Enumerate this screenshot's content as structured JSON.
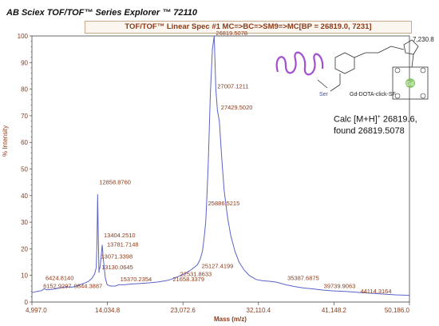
{
  "header": {
    "app_title": "AB Sciex TOF/TOF™ Series Explorer ™ 72110",
    "spectrum_title": "TOF/TOF™ Linear Spec #1 MC=>BC=>SM9=>MC[BP = 26819.0, 7231]"
  },
  "annotation": {
    "line1": "Calc [M+H]",
    "sup": "+",
    "line1_value": " 26819.6,",
    "line2": "found 26819.5078"
  },
  "compound": {
    "name": "Gd-DOTA-click-SF",
    "ser_label": "Ser",
    "gd_label": "Gd"
  },
  "colors": {
    "trace": "#5a63c8",
    "axis_text": "#8b3a1a",
    "coil": "#a24fd0",
    "gd": "#7ec05a"
  },
  "chart_data": {
    "type": "line",
    "xlabel": "Mass (m/z)",
    "ylabel": "% Intensity",
    "xlim": [
      4997.0,
      50186.0
    ],
    "ylim": [
      0,
      100
    ],
    "y_max_counts": "7,230.8",
    "x_ticks": [
      "4,997.0",
      "14,034.8",
      "23,072.6",
      "32,110.4",
      "41,148.2",
      "50,186.0"
    ],
    "x_tick_values": [
      4997.0,
      14034.8,
      23072.6,
      32110.4,
      41148.2,
      50186.0
    ],
    "y_ticks": [
      0,
      10,
      20,
      30,
      40,
      50,
      60,
      70,
      80,
      90,
      100
    ],
    "series": [
      {
        "x": [
          4997,
          5600,
          6200,
          6424.8,
          6800,
          7500,
          8200,
          9000,
          9844.4,
          10500,
          11200,
          11800,
          12200,
          12500,
          12700,
          12780,
          12858.9,
          12940,
          13020,
          13071.3,
          13130.1,
          13250,
          13404.3,
          13550,
          13781.7,
          14000,
          14400,
          15000,
          15370.2,
          16000,
          17000,
          18000,
          19000,
          20000,
          21000,
          21658.3,
          22400,
          23200,
          24000,
          24800,
          25127.4,
          25400,
          25600,
          25800,
          25886.5,
          26100,
          26350,
          26600,
          26819.5,
          27007.1,
          27200,
          27429.5,
          27700,
          28000,
          28400,
          28800,
          29300,
          29800,
          30400,
          31000,
          31800,
          32600,
          33400,
          34200,
          35387.7,
          36500,
          37500,
          38500,
          39739.9,
          41000,
          42500,
          44114.3,
          45500,
          47000,
          48500,
          50186
        ],
        "y": [
          3.5,
          4,
          4.3,
          5,
          4.6,
          4.8,
          5.2,
          5.7,
          5.6,
          6.2,
          7.0,
          7.8,
          9.0,
          10.5,
          13,
          22,
          40.5,
          26,
          11,
          13,
          12.5,
          16,
          21.5,
          16,
          9,
          6.5,
          6,
          6,
          6.5,
          6.5,
          6.8,
          7,
          7.2,
          7.5,
          8,
          8.5,
          9.5,
          10.5,
          12,
          14,
          16,
          19,
          24,
          30,
          36,
          52,
          78,
          95,
          100,
          80,
          72,
          68,
          55,
          42,
          32,
          25,
          19,
          15,
          12,
          10,
          8.5,
          8,
          7.8,
          7.5,
          6.5,
          5.8,
          5.3,
          5,
          4.5,
          4.2,
          4,
          3.6,
          3.3,
          3,
          2.7,
          2.5
        ]
      }
    ],
    "peak_labels": [
      {
        "x": 26819.5078,
        "y": 100,
        "text": "26819.5078"
      },
      {
        "x": 27007.1211,
        "y": 80,
        "text": "27007.1211"
      },
      {
        "x": 27429.502,
        "y": 72,
        "text": "27429.5020"
      },
      {
        "x": 12858.876,
        "y": 44,
        "text": "12858.8760"
      },
      {
        "x": 25886.5215,
        "y": 36,
        "text": "25886.5215"
      },
      {
        "x": 13404.251,
        "y": 24,
        "text": "13404.2510"
      },
      {
        "x": 13781.7148,
        "y": 20.5,
        "text": "13781.7148"
      },
      {
        "x": 13071.3398,
        "y": 16,
        "text": "13071.3398"
      },
      {
        "x": 13130.0645,
        "y": 12,
        "text": "13130.0645"
      },
      {
        "x": 15370.2354,
        "y": 7.5,
        "text": "15370.2354"
      },
      {
        "x": 21658.3379,
        "y": 7.5,
        "text": "21658.3379"
      },
      {
        "x": 22531.8633,
        "y": 9.5,
        "text": "22531.8633"
      },
      {
        "x": 25127.4199,
        "y": 12.5,
        "text": "25127.4199"
      },
      {
        "x": 6424.814,
        "y": 8,
        "text": "6424.8140"
      },
      {
        "x": 6152.9297,
        "y": 5,
        "text": "6152.9297"
      },
      {
        "x": 9844.3887,
        "y": 5,
        "text": "9844.3887"
      },
      {
        "x": 35387.6875,
        "y": 8,
        "text": "35387.6875"
      },
      {
        "x": 39739.9063,
        "y": 5,
        "text": "39739.9063"
      },
      {
        "x": 44114.3164,
        "y": 3,
        "text": "44114.3164"
      }
    ]
  }
}
